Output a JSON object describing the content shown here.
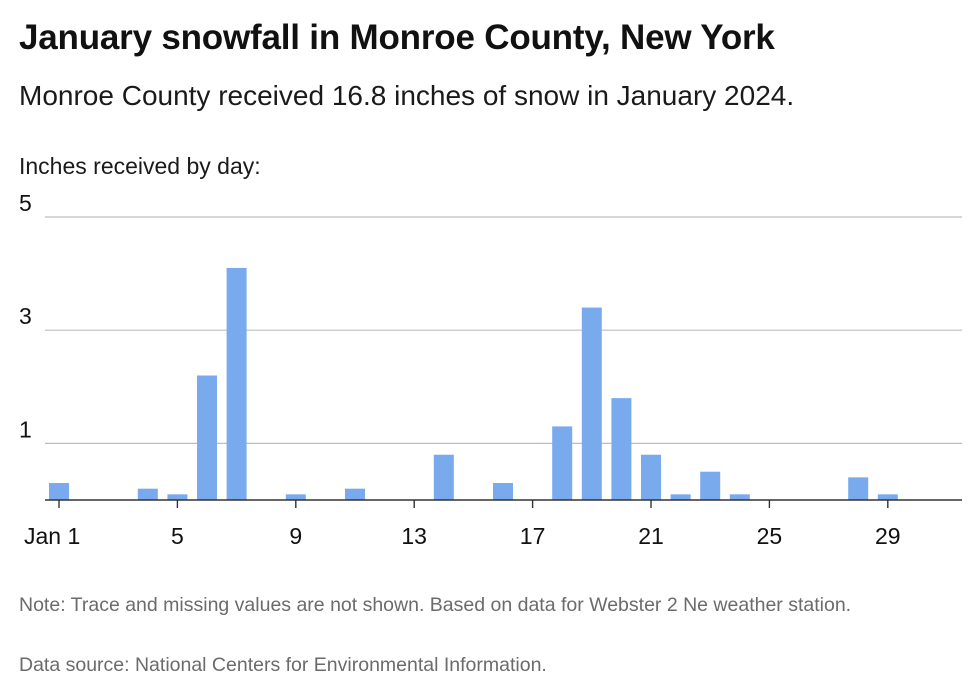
{
  "header": {
    "title": "January snowfall in Monroe County, New York",
    "subtitle": "Monroe County received 16.8 inches of snow in January 2024."
  },
  "colors": {
    "bar": "#7aaaee",
    "grid": "#bdbdbd",
    "axis": "#333333",
    "text": "#111111",
    "footnote": "#6b6b6b"
  },
  "chart_data": {
    "type": "bar",
    "title": "January snowfall in Monroe County, New York",
    "ylabel": "Inches received by day:",
    "ylim": [
      0,
      5
    ],
    "yticks": [
      1,
      3,
      5
    ],
    "xlim": [
      1,
      31
    ],
    "xticks": [
      {
        "day": 1,
        "label": "Jan 1"
      },
      {
        "day": 5,
        "label": "5"
      },
      {
        "day": 9,
        "label": "9"
      },
      {
        "day": 13,
        "label": "13"
      },
      {
        "day": 17,
        "label": "17"
      },
      {
        "day": 21,
        "label": "21"
      },
      {
        "day": 25,
        "label": "25"
      },
      {
        "day": 29,
        "label": "29"
      }
    ],
    "grid": true,
    "x": [
      1,
      4,
      5,
      6,
      7,
      9,
      11,
      14,
      16,
      18,
      19,
      20,
      21,
      22,
      23,
      24,
      28,
      29
    ],
    "values": [
      0.3,
      0.2,
      0.1,
      2.2,
      4.1,
      0.1,
      0.2,
      0.8,
      0.3,
      1.3,
      3.4,
      1.8,
      0.8,
      0.1,
      0.5,
      0.1,
      0.4,
      0.1
    ]
  },
  "footer": {
    "note": "Note: Trace and missing values are not shown. Based on data for Webster 2 Ne weather station.",
    "source": "Data source: National Centers for Environmental Information."
  }
}
